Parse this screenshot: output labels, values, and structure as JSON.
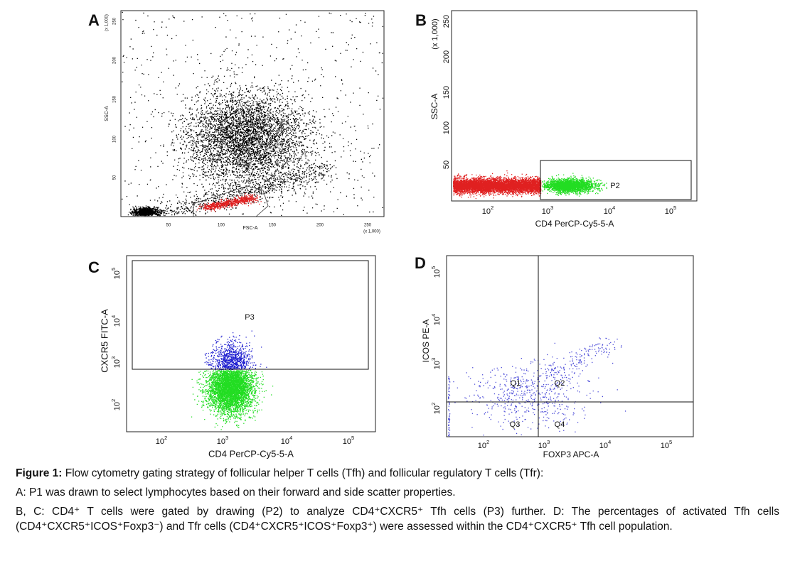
{
  "panels": [
    {
      "letter": "A",
      "x_label": "FSC-A",
      "y_label": "SSC-A",
      "x_unit": "(x 1,000)",
      "y_unit": "(x 1,000)",
      "x_ticks": [
        "50",
        "100",
        "150",
        "200",
        "250"
      ],
      "y_ticks": [
        "50",
        "100",
        "150",
        "200",
        "250"
      ]
    },
    {
      "letter": "B",
      "x_label": "CD4 PerCP-Cy5-5-A",
      "y_label": "SSC-A",
      "y_unit": "(x 1,000)",
      "x_ticks": [
        {
          "base": "10",
          "exp": "2"
        },
        {
          "base": "10",
          "exp": "3"
        },
        {
          "base": "10",
          "exp": "4"
        },
        {
          "base": "10",
          "exp": "5"
        }
      ],
      "y_ticks": [
        "50",
        "100",
        "150",
        "200",
        "250"
      ],
      "gates": [
        "P2"
      ]
    },
    {
      "letter": "C",
      "x_label": "CD4 PerCP-Cy5-5-A",
      "y_label": "CXCR5 FITC-A",
      "x_ticks": [
        {
          "base": "10",
          "exp": "2"
        },
        {
          "base": "10",
          "exp": "3"
        },
        {
          "base": "10",
          "exp": "4"
        },
        {
          "base": "10",
          "exp": "5"
        }
      ],
      "y_ticks": [
        {
          "base": "10",
          "exp": "2"
        },
        {
          "base": "10",
          "exp": "3"
        },
        {
          "base": "10",
          "exp": "4"
        },
        {
          "base": "10",
          "exp": "5"
        }
      ],
      "gates": [
        "P3"
      ]
    },
    {
      "letter": "D",
      "x_label": "FOXP3 APC-A",
      "y_label": "ICOS PE-A",
      "x_ticks": [
        {
          "base": "10",
          "exp": "2"
        },
        {
          "base": "10",
          "exp": "3"
        },
        {
          "base": "10",
          "exp": "4"
        },
        {
          "base": "10",
          "exp": "5"
        }
      ],
      "y_ticks": [
        {
          "base": "10",
          "exp": "2"
        },
        {
          "base": "10",
          "exp": "3"
        },
        {
          "base": "10",
          "exp": "4"
        },
        {
          "base": "10",
          "exp": "5"
        }
      ],
      "gates": [
        "Q1",
        "Q2",
        "Q3",
        "Q4"
      ]
    }
  ],
  "caption": {
    "title": "Figure 1:",
    "intro": " Flow cytometry gating strategy of follicular helper T cells (Tfh) and follicular regulatory T cells (Tfr):",
    "paragraphs": [
      "A: P1 was drawn to select lymphocytes based on their forward and side scatter properties.",
      "B, C: CD4⁺ T cells were gated by drawing (P2) to analyze CD4⁺CXCR5⁺ Tfh cells (P3) further. D: The percentages of activated Tfh cells (CD4⁺CXCR5⁺ICOS⁺Foxp3⁻) and Tfr cells (CD4⁺CXCR5⁺ICOS⁺Foxp3⁺) were assessed within the CD4⁺CXCR5⁺ Tfh cell population."
    ]
  }
}
